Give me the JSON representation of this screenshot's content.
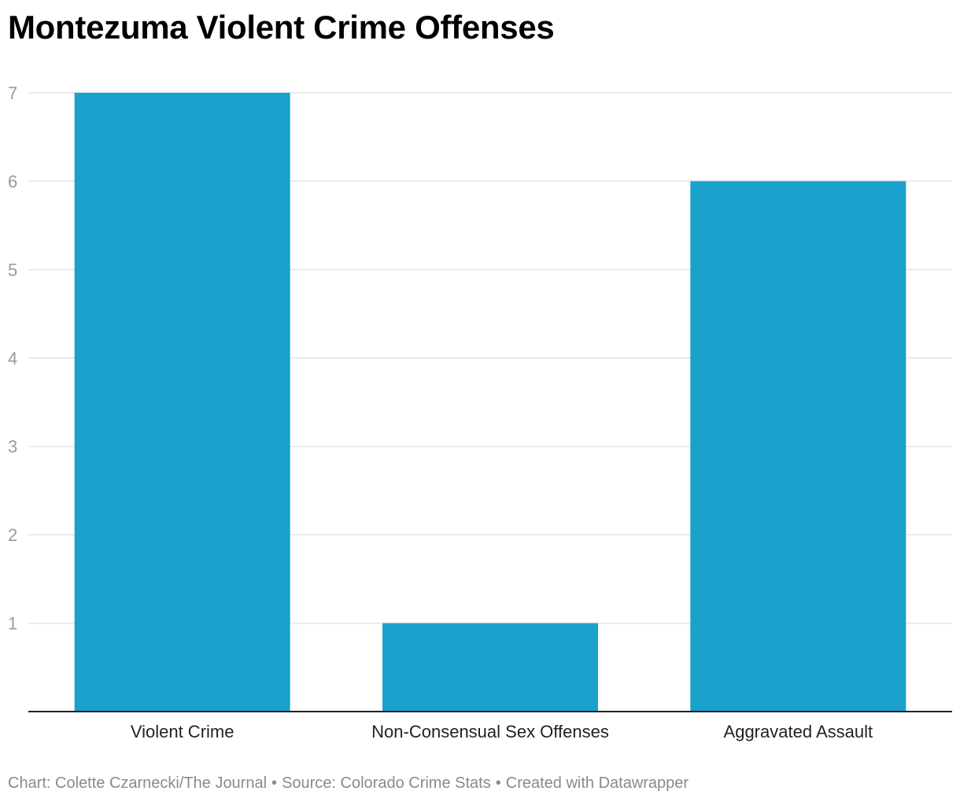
{
  "title": "Montezuma Violent Crime Offenses",
  "chart_data": {
    "type": "bar",
    "categories": [
      "Violent Crime",
      "Non-Consensual Sex Offenses",
      "Aggravated Assault"
    ],
    "values": [
      7,
      1,
      6
    ],
    "ylim": [
      0,
      7
    ],
    "yticks": [
      1,
      2,
      3,
      4,
      5,
      6,
      7
    ],
    "grid": true,
    "bar_color": "#1aa1cc",
    "gridline_color": "#e3e3e3",
    "axis_color": "#222222",
    "tick_label_color": "#9a9a9a"
  },
  "footer": {
    "credit": "Chart: Colette Czarnecki/The Journal",
    "source": "Source: Colorado Crime Stats",
    "tool": "Created with Datawrapper",
    "separator": "•"
  }
}
